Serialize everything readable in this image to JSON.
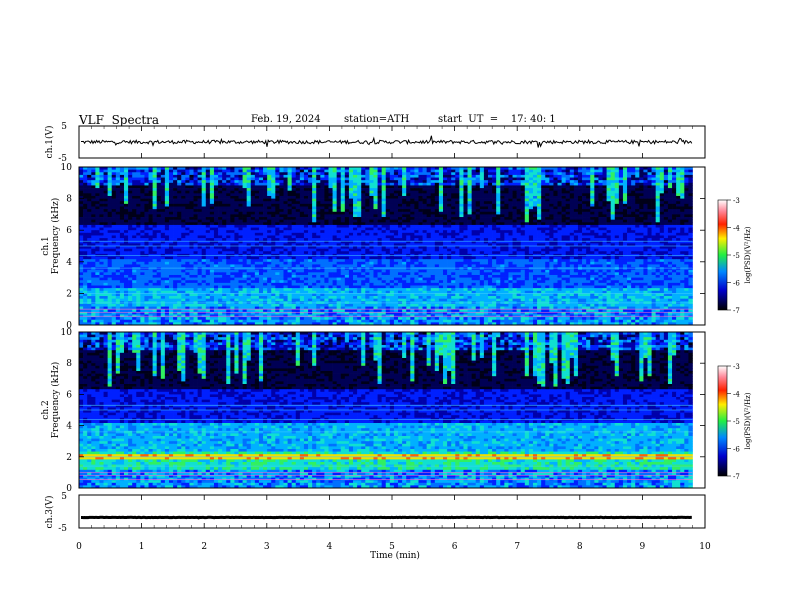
{
  "header": {
    "title": "VLF  Spectra",
    "date": "Feb. 19, 2024",
    "station": "station=ATH",
    "start": "start  UT  =    17: 40: 1"
  },
  "colors": {
    "spectrogram_low": "#000022",
    "spectrogram_mid": "#0a3cff",
    "spectrogram_high": "#22dd33",
    "spectrogram_peak": "#ff2200"
  },
  "chart_data": [
    {
      "type": "line",
      "panel": "ch1-waveform",
      "ylabel": "ch.1(V)",
      "ylim": [
        -5,
        5
      ],
      "yticks": [
        "5",
        "-5"
      ],
      "xlim": [
        0,
        10
      ],
      "baseline": 0,
      "description_of_trace": "noisy waveform around 0 V"
    },
    {
      "type": "heatmap",
      "panel": "ch1-spectrogram",
      "ylabel": "Frequency (kHz)",
      "channel_label": "ch.1",
      "ylim": [
        0,
        10
      ],
      "yticks": [
        "0",
        "2",
        "4",
        "6",
        "8",
        "10"
      ],
      "xlim": [
        0,
        9.8
      ],
      "colorbar": {
        "label": "log(PSD)(V²/Hz)",
        "range": [
          -7,
          -3
        ],
        "ticks": [
          "-3",
          "-4",
          "-5",
          "-6",
          "-7"
        ]
      }
    },
    {
      "type": "heatmap",
      "panel": "ch2-spectrogram",
      "ylabel": "Frequency (kHz)",
      "channel_label": "ch.2",
      "ylim": [
        0,
        10
      ],
      "yticks": [
        "0",
        "2",
        "4",
        "6",
        "8",
        "10"
      ],
      "xlim": [
        0,
        9.8
      ],
      "colorbar": {
        "label": "log(PSD)(V²/Hz)",
        "range": [
          -7,
          -3
        ],
        "ticks": [
          "-3",
          "-4",
          "-5",
          "-6",
          "-7"
        ]
      }
    },
    {
      "type": "line",
      "panel": "ch3-waveform",
      "ylabel": "ch.3(V)",
      "ylim": [
        -5,
        5
      ],
      "yticks": [
        "5",
        "-5"
      ],
      "xlim": [
        0,
        10
      ],
      "baseline": -1.8,
      "xlabel": "Time  (min)",
      "xticks": [
        "0",
        "1",
        "2",
        "3",
        "4",
        "5",
        "6",
        "7",
        "8",
        "9",
        "10"
      ]
    }
  ]
}
